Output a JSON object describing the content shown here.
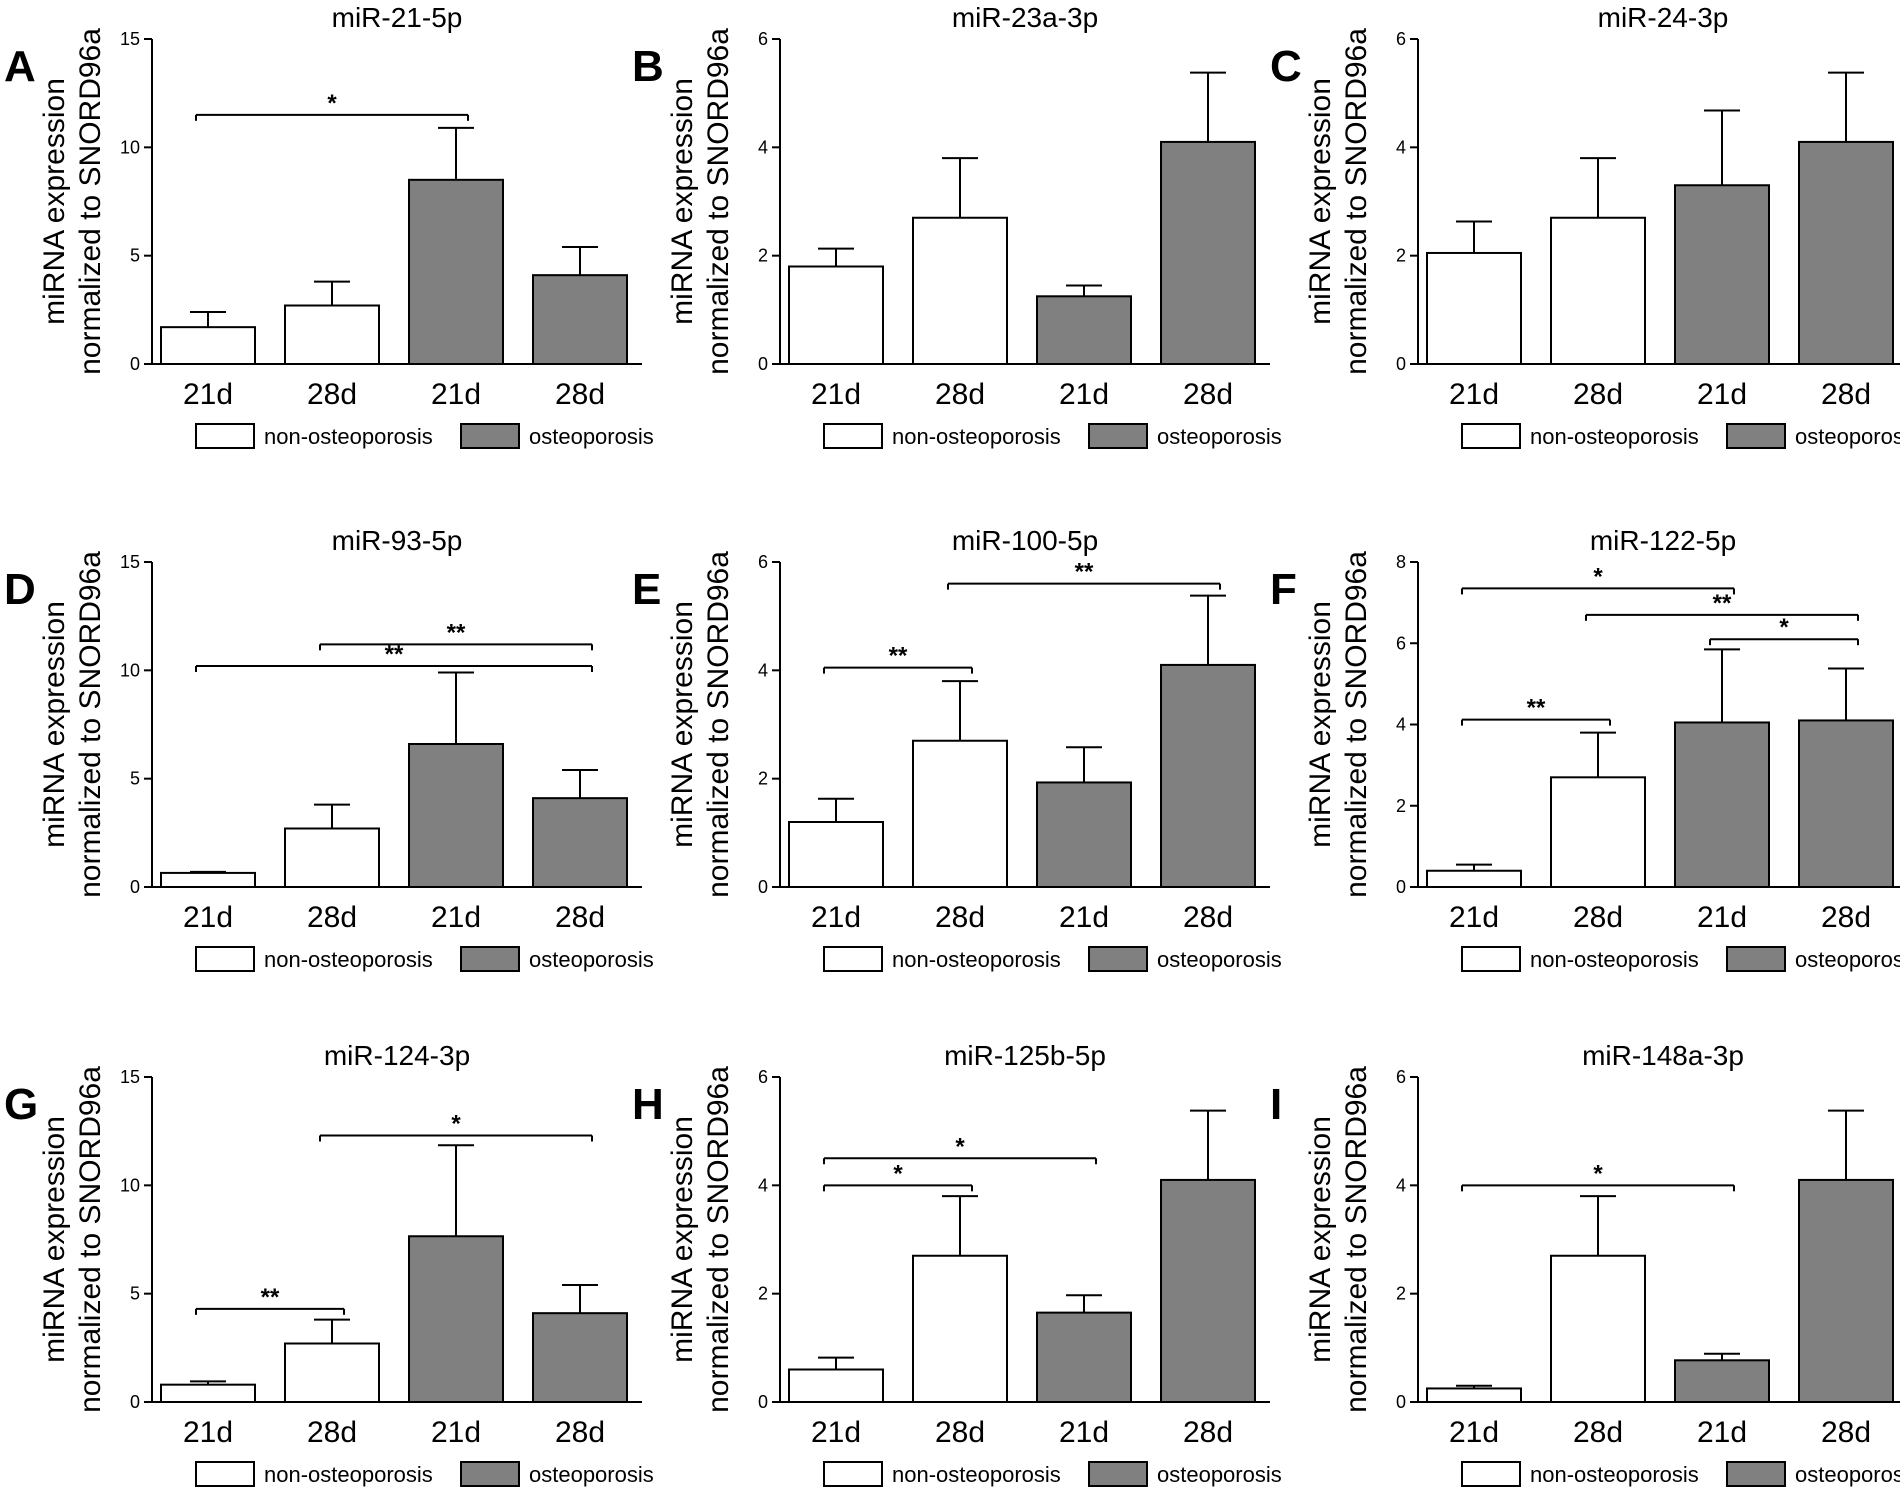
{
  "figure": {
    "ylabel_line1": "miRNA expression",
    "ylabel_line2": "normalized to SNORD96a",
    "legend": [
      {
        "label": "non-osteoporosis",
        "color": "#ffffff"
      },
      {
        "label": "osteoporosis",
        "color": "#808080"
      }
    ],
    "colors": {
      "non_osteoporosis": "#ffffff",
      "osteoporosis": "#808080",
      "stroke": "#000000"
    }
  },
  "chart_data": [
    {
      "panel": "A",
      "type": "bar",
      "title": "miR-21-5p",
      "categories": [
        "21d",
        "28d",
        "21d",
        "28d"
      ],
      "groups": [
        "non-osteoporosis",
        "non-osteoporosis",
        "osteoporosis",
        "osteoporosis"
      ],
      "values": [
        1.7,
        2.7,
        8.5,
        4.1
      ],
      "errors": [
        0.7,
        1.1,
        2.4,
        1.3
      ],
      "ylim": [
        0,
        15
      ],
      "yticks": [
        "0",
        "5",
        "10",
        "15"
      ],
      "ytick_values": [
        0,
        5,
        10,
        15
      ],
      "significance": [
        {
          "from": 0,
          "to": 2,
          "label": "*",
          "level": 11.5
        }
      ]
    },
    {
      "panel": "B",
      "type": "bar",
      "title": "miR-23a-3p",
      "categories": [
        "21d",
        "28d",
        "21d",
        "28d"
      ],
      "groups": [
        "non-osteoporosis",
        "non-osteoporosis",
        "osteoporosis",
        "osteoporosis"
      ],
      "values": [
        1.8,
        2.7,
        1.25,
        4.1
      ],
      "errors": [
        0.33,
        1.1,
        0.2,
        1.28
      ],
      "ylim": [
        0,
        6
      ],
      "yticks": [
        "0",
        "2",
        "4",
        "6"
      ],
      "ytick_values": [
        0,
        2,
        4,
        6
      ],
      "significance": []
    },
    {
      "panel": "C",
      "type": "bar",
      "title": "miR-24-3p",
      "categories": [
        "21d",
        "28d",
        "21d",
        "28d"
      ],
      "groups": [
        "non-osteoporosis",
        "non-osteoporosis",
        "osteoporosis",
        "osteoporosis"
      ],
      "values": [
        2.05,
        2.7,
        3.3,
        4.1
      ],
      "errors": [
        0.58,
        1.1,
        1.38,
        1.28
      ],
      "ylim": [
        0,
        6
      ],
      "yticks": [
        "0",
        "2",
        "4",
        "6"
      ],
      "ytick_values": [
        0,
        2,
        4,
        6
      ],
      "significance": []
    },
    {
      "panel": "D",
      "type": "bar",
      "title": "miR-93-5p",
      "categories": [
        "21d",
        "28d",
        "21d",
        "28d"
      ],
      "groups": [
        "non-osteoporosis",
        "non-osteoporosis",
        "osteoporosis",
        "osteoporosis"
      ],
      "values": [
        0.65,
        2.7,
        6.6,
        4.1
      ],
      "errors": [
        0.05,
        1.1,
        3.3,
        1.3
      ],
      "ylim": [
        0,
        15
      ],
      "yticks": [
        "0",
        "5",
        "10",
        "15"
      ],
      "ytick_values": [
        0,
        5,
        10,
        15
      ],
      "significance": [
        {
          "from": 1,
          "to": 3,
          "label": "**",
          "level": 11.2
        },
        {
          "from": 0,
          "to": 3,
          "label": "**",
          "level": 10.2
        }
      ]
    },
    {
      "panel": "E",
      "type": "bar",
      "title": "miR-100-5p",
      "categories": [
        "21d",
        "28d",
        "21d",
        "28d"
      ],
      "groups": [
        "non-osteoporosis",
        "non-osteoporosis",
        "osteoporosis",
        "osteoporosis"
      ],
      "values": [
        1.2,
        2.7,
        1.93,
        4.1
      ],
      "errors": [
        0.43,
        1.1,
        0.65,
        1.28
      ],
      "ylim": [
        0,
        6
      ],
      "yticks": [
        "0",
        "2",
        "4",
        "6"
      ],
      "ytick_values": [
        0,
        2,
        4,
        6
      ],
      "significance": [
        {
          "from": 1,
          "to": 3,
          "label": "**",
          "level": 5.6
        },
        {
          "from": 0,
          "to": 1,
          "label": "**",
          "level": 4.05
        }
      ]
    },
    {
      "panel": "F",
      "type": "bar",
      "title": "miR-122-5p",
      "categories": [
        "21d",
        "28d",
        "21d",
        "28d"
      ],
      "groups": [
        "non-osteoporosis",
        "non-osteoporosis",
        "osteoporosis",
        "osteoporosis"
      ],
      "values": [
        0.4,
        2.7,
        4.05,
        4.1
      ],
      "errors": [
        0.15,
        1.1,
        1.8,
        1.28
      ],
      "ylim": [
        0,
        8
      ],
      "yticks": [
        "0",
        "2",
        "4",
        "6",
        "8"
      ],
      "ytick_values": [
        0,
        2,
        4,
        6,
        8
      ],
      "significance": [
        {
          "from": 0,
          "to": 2,
          "label": "*",
          "level": 7.35
        },
        {
          "from": 1,
          "to": 3,
          "label": "**",
          "level": 6.7
        },
        {
          "from": 2,
          "to": 3,
          "label": "*",
          "level": 6.1
        },
        {
          "from": 0,
          "to": 1,
          "label": "**",
          "level": 4.12
        }
      ]
    },
    {
      "panel": "G",
      "type": "bar",
      "title": "miR-124-3p",
      "categories": [
        "21d",
        "28d",
        "21d",
        "28d"
      ],
      "groups": [
        "non-osteoporosis",
        "non-osteoporosis",
        "osteoporosis",
        "osteoporosis"
      ],
      "values": [
        0.8,
        2.7,
        7.65,
        4.1
      ],
      "errors": [
        0.15,
        1.1,
        4.2,
        1.3
      ],
      "ylim": [
        0,
        15
      ],
      "yticks": [
        "0",
        "5",
        "10",
        "15"
      ],
      "ytick_values": [
        0,
        5,
        10,
        15
      ],
      "significance": [
        {
          "from": 1,
          "to": 3,
          "label": "*",
          "level": 12.3
        },
        {
          "from": 0,
          "to": 1,
          "label": "**",
          "level": 4.3
        }
      ]
    },
    {
      "panel": "H",
      "type": "bar",
      "title": "miR-125b-5p",
      "categories": [
        "21d",
        "28d",
        "21d",
        "28d"
      ],
      "groups": [
        "non-osteoporosis",
        "non-osteoporosis",
        "osteoporosis",
        "osteoporosis"
      ],
      "values": [
        0.6,
        2.7,
        1.65,
        4.1
      ],
      "errors": [
        0.22,
        1.1,
        0.32,
        1.28
      ],
      "ylim": [
        0,
        6
      ],
      "yticks": [
        "0",
        "2",
        "4",
        "6"
      ],
      "ytick_values": [
        0,
        2,
        4,
        6
      ],
      "significance": [
        {
          "from": 0,
          "to": 2,
          "label": "*",
          "level": 4.5
        },
        {
          "from": 0,
          "to": 1,
          "label": "*",
          "level": 4.0
        }
      ]
    },
    {
      "panel": "I",
      "type": "bar",
      "title": "miR-148a-3p",
      "categories": [
        "21d",
        "28d",
        "21d",
        "28d"
      ],
      "groups": [
        "non-osteoporosis",
        "non-osteoporosis",
        "osteoporosis",
        "osteoporosis"
      ],
      "values": [
        0.25,
        2.7,
        0.77,
        4.1
      ],
      "errors": [
        0.05,
        1.1,
        0.12,
        1.28
      ],
      "ylim": [
        0,
        6
      ],
      "yticks": [
        "0",
        "2",
        "4",
        "6"
      ],
      "ytick_values": [
        0,
        2,
        4,
        6
      ],
      "significance": [
        {
          "from": 0,
          "to": 2,
          "label": "*",
          "level": 4.0
        }
      ]
    }
  ]
}
